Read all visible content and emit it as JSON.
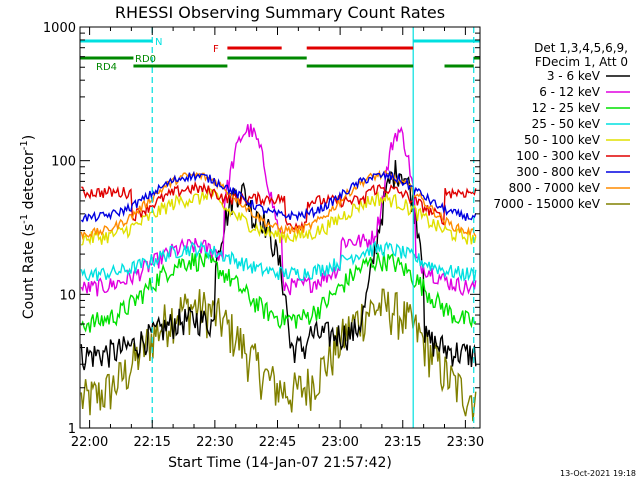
{
  "chart_data": {
    "type": "line",
    "title": "RHESSI Observing Summary Count Rates",
    "xlabel": "Start Time (14-Jan-07 21:57:42)",
    "ylabel": "Count Rate (s",
    "ylabel_sup": "-1",
    "ylabel_tail": " detector",
    "ylabel_end": ")",
    "x_range_min": [
      -2.3,
      93.5
    ],
    "ylim": [
      1,
      1000
    ],
    "yscale": "log",
    "x_ticks": [
      {
        "m": 0,
        "label": "22:00"
      },
      {
        "m": 15,
        "label": "22:15"
      },
      {
        "m": 30,
        "label": "22:30"
      },
      {
        "m": 45,
        "label": "22:45"
      },
      {
        "m": 60,
        "label": "23:00"
      },
      {
        "m": 75,
        "label": "23:15"
      },
      {
        "m": 90,
        "label": "23:30"
      }
    ],
    "y_ticks": [
      {
        "v": 1,
        "label": "1"
      },
      {
        "v": 10,
        "label": "10"
      },
      {
        "v": 100,
        "label": "100"
      },
      {
        "v": 1000,
        "label": "1000"
      }
    ],
    "legend_header": [
      "Det 1,3,4,5,6,9,",
      "FDecim 1, Att 0"
    ],
    "series": [
      {
        "name": "3 - 6 keV",
        "color": "#000000"
      },
      {
        "name": "6 - 12 keV",
        "color": "#e000e0"
      },
      {
        "name": "12 - 25 keV",
        "color": "#00e000"
      },
      {
        "name": "25 - 50 keV",
        "color": "#00e0e0"
      },
      {
        "name": "50 - 100 keV",
        "color": "#e0e000"
      },
      {
        "name": "100 - 300 keV",
        "color": "#e00000"
      },
      {
        "name": "300 - 800 keV",
        "color": "#0000e0"
      },
      {
        "name": "800 - 7000 keV",
        "color": "#ff8c00"
      },
      {
        "name": "7000 - 15000 keV",
        "color": "#808000"
      }
    ],
    "vlines": [
      {
        "m": 15,
        "color": "#00e0e0",
        "style": "dash"
      },
      {
        "m": 77.5,
        "color": "#00e0e0",
        "style": "solid"
      },
      {
        "m": 92,
        "color": "#00e0e0",
        "style": "dash"
      }
    ],
    "flag_bars": [
      {
        "label": "N",
        "color": "#00e0e0",
        "segments": [
          [
            -2.3,
            15
          ],
          [
            77.5,
            93.5
          ]
        ]
      },
      {
        "label": "F",
        "color": "#e00000",
        "segments": [
          [
            33,
            46
          ],
          [
            52,
            77.5
          ]
        ]
      },
      {
        "label": "RD0",
        "color": "#008800",
        "segments": [
          [
            -2.3,
            10.5
          ],
          [
            33,
            52
          ],
          [
            92,
            93.5
          ]
        ]
      },
      {
        "label": "RD4",
        "color": "#008800",
        "segments": [
          [
            10.5,
            33
          ],
          [
            52,
            77.5
          ],
          [
            85,
            92
          ]
        ]
      }
    ]
  },
  "footer": {
    "timestamp": "13-Oct-2021 19:18"
  }
}
